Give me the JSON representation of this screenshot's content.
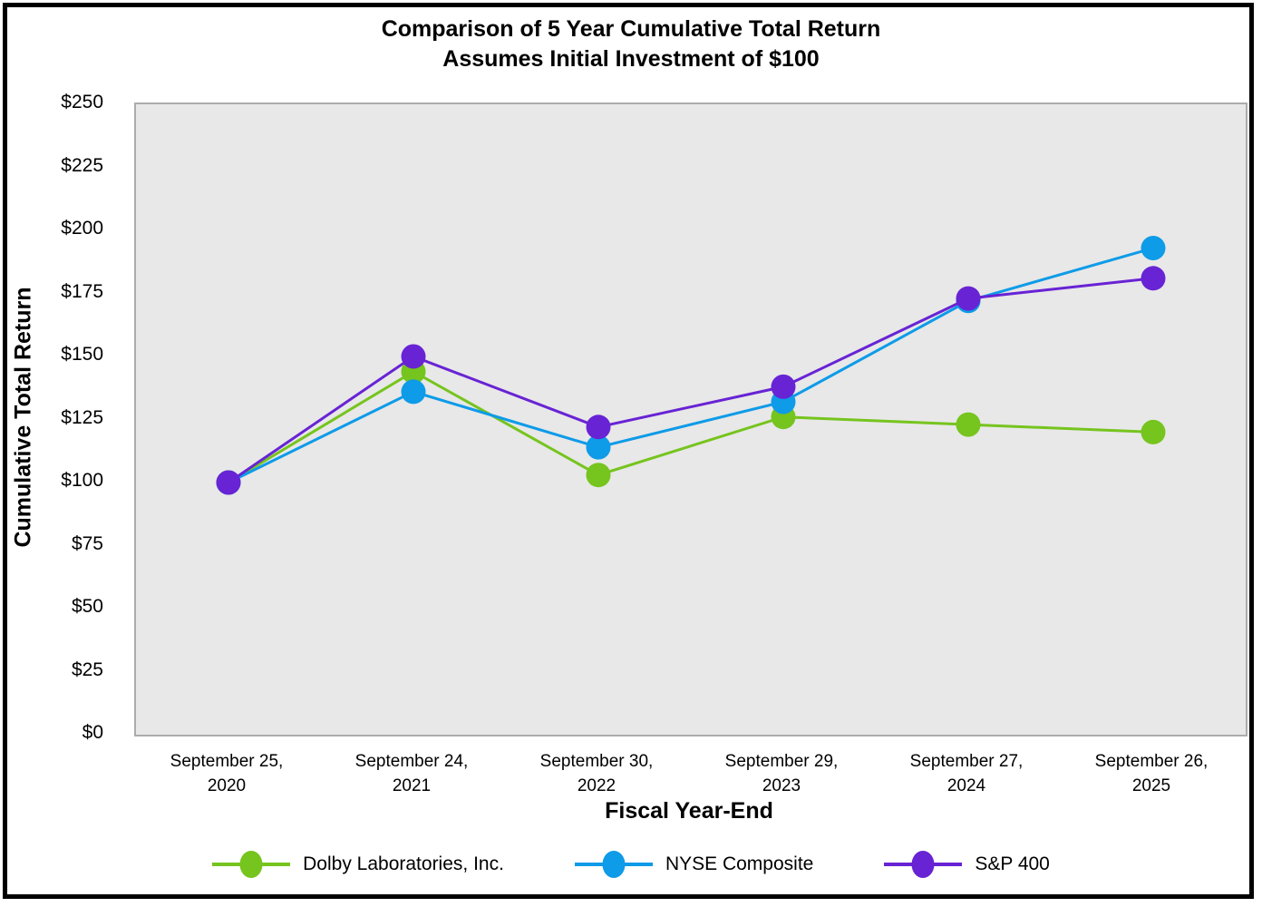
{
  "chart_data": {
    "type": "line",
    "title_line1": "Comparison of 5 Year Cumulative Total Return",
    "title_line2": "Assumes Initial Investment of $100",
    "xlabel": "Fiscal Year-End",
    "ylabel": "Cumulative Total Return",
    "ylim": [
      0,
      250
    ],
    "ytick_step": 25,
    "ytick_labels": [
      "$0",
      "$25",
      "$50",
      "$75",
      "$100",
      "$125",
      "$150",
      "$175",
      "$200",
      "$225",
      "$250"
    ],
    "grid": false,
    "plot_bg_color": "#E8E8E8",
    "legend_position": "bottom",
    "categories": [
      {
        "line1": "September 25,",
        "line2": "2020"
      },
      {
        "line1": "September 24,",
        "line2": "2021"
      },
      {
        "line1": "September 30,",
        "line2": "2022"
      },
      {
        "line1": "September 29,",
        "line2": "2023"
      },
      {
        "line1": "September 27,",
        "line2": "2024"
      },
      {
        "line1": "September 26,",
        "line2": "2025"
      }
    ],
    "series": [
      {
        "name": "Dolby Laboratories, Inc.",
        "color": "#76C41E",
        "values": [
          100,
          144,
          103,
          126,
          123,
          120
        ]
      },
      {
        "name": "NYSE Composite",
        "color": "#0E9BE8",
        "values": [
          100,
          136,
          114,
          132,
          172,
          193
        ]
      },
      {
        "name": "S&P 400",
        "color": "#6823D4",
        "values": [
          100,
          150,
          122,
          138,
          173,
          181
        ]
      }
    ]
  }
}
